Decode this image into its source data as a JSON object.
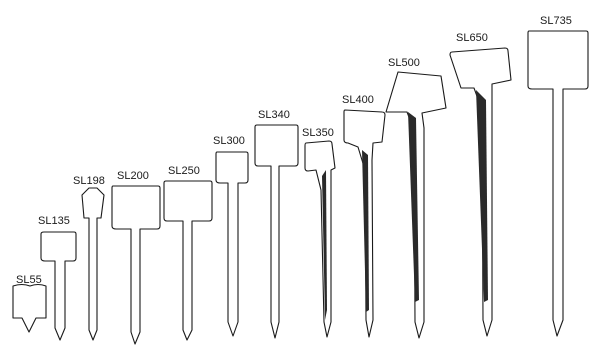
{
  "labels": {
    "sl55": "SL55",
    "sl135": "SL135",
    "sl198": "SL198",
    "sl200": "SL200",
    "sl250": "SL250",
    "sl300": "SL300",
    "sl340": "SL340",
    "sl350": "SL350",
    "sl400": "SL400",
    "sl500": "SL500",
    "sl650": "SL650",
    "sl735": "SL735"
  }
}
